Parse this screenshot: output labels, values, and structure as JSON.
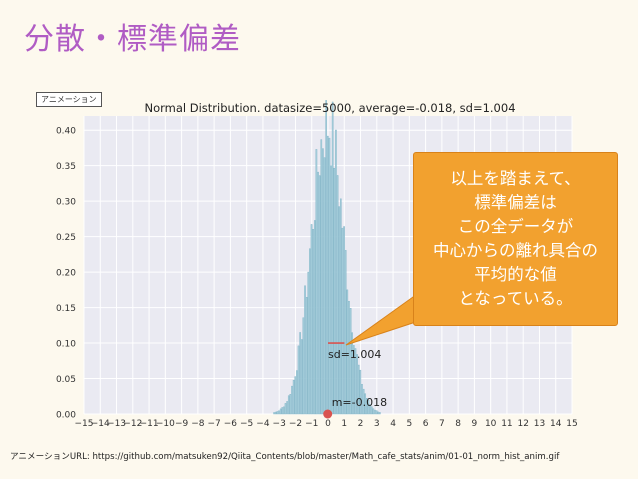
{
  "slide": {
    "title": "分散・標準偏差",
    "animation_label": "アニメーション",
    "url_text": "アニメーションURL: https://github.com/matsuken92/Qiita_Contents/blob/master/Math_cafe_stats/anim/01-01_norm_hist_anim.gif"
  },
  "callout": {
    "lines": [
      "以上を踏まえて、",
      "標準偏差は",
      "この全データが",
      "中心からの離れ具合の",
      "平均的な値",
      "となっている。"
    ],
    "background_color": "#f2a12f"
  },
  "chart_data": {
    "type": "bar",
    "title": "Normal Distribution. datasize=5000, average=-0.018, sd=1.004",
    "xlabel": "",
    "ylabel": "",
    "xlim": [
      -15,
      15
    ],
    "ylim": [
      0,
      0.42
    ],
    "x_ticks": [
      -15,
      -14,
      -13,
      -12,
      -11,
      -10,
      -9,
      -8,
      -7,
      -6,
      -5,
      -4,
      -3,
      -2,
      -1,
      0,
      1,
      2,
      3,
      4,
      5,
      6,
      7,
      8,
      9,
      10,
      11,
      12,
      13,
      14,
      15
    ],
    "y_ticks": [
      0.0,
      0.05,
      0.1,
      0.15,
      0.2,
      0.25,
      0.3,
      0.35,
      0.4
    ],
    "y_tick_labels": [
      "0.00",
      "0.05",
      "0.10",
      "0.15",
      "0.20",
      "0.25",
      "0.30",
      "0.35",
      "0.40"
    ],
    "grid": true,
    "bar_color": "#a8cfdc",
    "distribution": {
      "mean": -0.018,
      "sd": 1.004,
      "bin_width": 0.1,
      "peak_density": 0.41
    },
    "annotations": {
      "sd_label": "sd=1.004",
      "sd_line_x": [
        0,
        1.004
      ],
      "sd_line_y": 0.1,
      "sd_line_color": "#d9534f",
      "mean_label": "m=-0.018",
      "mean_x": -0.018,
      "mean_marker_color": "#d9534f"
    }
  }
}
